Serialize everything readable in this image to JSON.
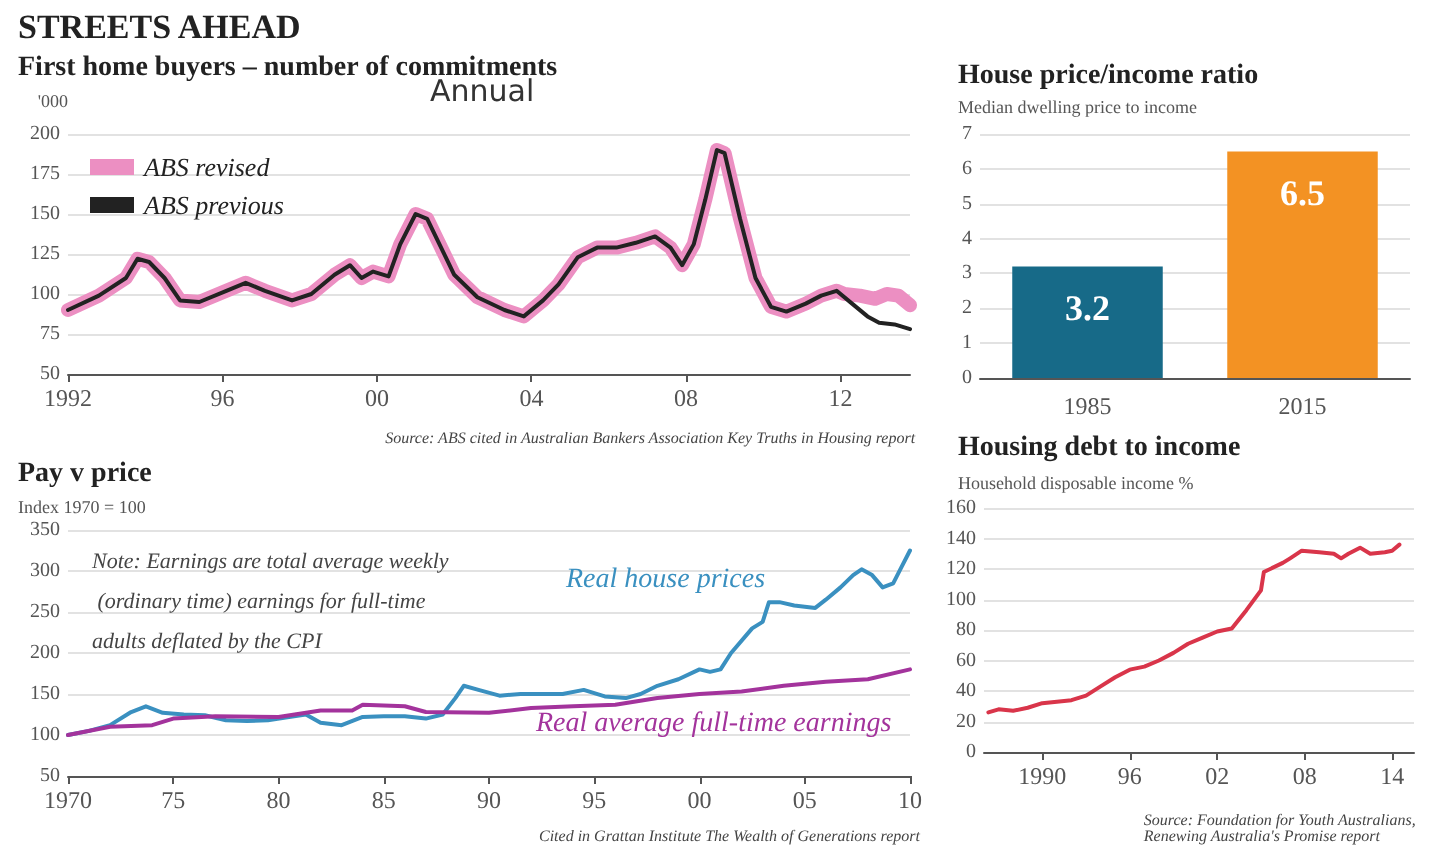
{
  "chart_data": [
    {
      "type": "line",
      "title": "STREETS AHEAD",
      "subtitle": "First home buyers – number of commitments",
      "ylabel": "'000",
      "annotations": [
        "Annual",
        "Source: ABS cited in Australian Bankers Association Key Truths in Housing report"
      ],
      "series": [
        {
          "name": "ABS revised",
          "color": "#ec8fc2",
          "x": [
            1992,
            1992.8,
            1993.5,
            1993.8,
            1994.1,
            1994.5,
            1994.9,
            1995.4,
            1996.1,
            1996.6,
            1997.1,
            1997.8,
            1998.3,
            1998.9,
            1999.3,
            1999.6,
            1999.9,
            2000.3,
            2000.6,
            2001.0,
            2001.3,
            2001.6,
            2002.0,
            2002.6,
            2003.3,
            2003.8,
            2004.3,
            2004.7,
            2005.2,
            2005.7,
            2006.2,
            2006.7,
            2007.2,
            2007.6,
            2007.9,
            2008.2,
            2008.5,
            2008.8,
            2009.0,
            2009.4,
            2009.8,
            2010.2,
            2010.6,
            2011.1,
            2011.5,
            2011.9,
            2012.1,
            2012.5,
            2012.9,
            2013.2,
            2013.5,
            2013.8
          ],
          "values": [
            90,
            99,
            110,
            122,
            120,
            110,
            96,
            95,
            102,
            107,
            102,
            96,
            100,
            112,
            118,
            110,
            114,
            111,
            131,
            150,
            147,
            132,
            112,
            98,
            90,
            86,
            96,
            106,
            123,
            129,
            129,
            132,
            136,
            129,
            118,
            131,
            159,
            190,
            188,
            147,
            110,
            92,
            89,
            94,
            99,
            102,
            100,
            99,
            97,
            100,
            99,
            93
          ]
        },
        {
          "name": "ABS previous",
          "color": "#222222",
          "x": [
            1992,
            1992.8,
            1993.5,
            1993.8,
            1994.1,
            1994.5,
            1994.9,
            1995.4,
            1996.1,
            1996.6,
            1997.1,
            1997.8,
            1998.3,
            1998.9,
            1999.3,
            1999.6,
            1999.9,
            2000.3,
            2000.6,
            2001.0,
            2001.3,
            2001.6,
            2002.0,
            2002.6,
            2003.3,
            2003.8,
            2004.3,
            2004.7,
            2005.2,
            2005.7,
            2006.2,
            2006.7,
            2007.2,
            2007.6,
            2007.9,
            2008.2,
            2008.5,
            2008.8,
            2009.0,
            2009.4,
            2009.8,
            2010.2,
            2010.6,
            2011.1,
            2011.5,
            2011.9,
            2012.3,
            2012.7,
            2013.0,
            2013.4,
            2013.8
          ],
          "values": [
            90,
            99,
            110,
            122,
            120,
            110,
            96,
            95,
            102,
            107,
            102,
            96,
            100,
            112,
            118,
            110,
            114,
            111,
            131,
            150,
            147,
            132,
            112,
            98,
            90,
            86,
            96,
            106,
            123,
            129,
            129,
            132,
            136,
            129,
            118,
            131,
            159,
            190,
            188,
            147,
            110,
            92,
            89,
            94,
            99,
            102,
            94,
            86,
            82,
            81,
            78
          ]
        }
      ],
      "xlim": [
        1992,
        2013.8
      ],
      "xticks": [
        {
          "value": 1992,
          "label": "1992"
        },
        {
          "value": 1996,
          "label": "96"
        },
        {
          "value": 2000,
          "label": "00"
        },
        {
          "value": 2004,
          "label": "04"
        },
        {
          "value": 2008,
          "label": "08"
        },
        {
          "value": 2012,
          "label": "12"
        }
      ],
      "ylim": [
        50,
        200
      ],
      "yticks": [
        50,
        75,
        100,
        125,
        150,
        175,
        200
      ],
      "grid": "y",
      "legend": "top left",
      "marker": "none",
      "line_style": "solid"
    },
    {
      "type": "bar",
      "title": "House price/income ratio",
      "subtitle": "Median dwelling price to income",
      "categories": [
        "1985",
        "2015"
      ],
      "values": [
        3.2,
        6.5
      ],
      "colors": [
        "#176a88",
        "#f39223"
      ],
      "ylim": [
        0,
        7
      ],
      "yticks": [
        0,
        1,
        2,
        3,
        4,
        5,
        6,
        7
      ],
      "grid": "y",
      "data_labels": true
    },
    {
      "type": "line",
      "title": "Pay v price",
      "subtitle": "Index 1970 = 100",
      "annotations": [
        "Note: Earnings are total average weekly (ordinary time) earnings for full-time adults deflated by the CPI",
        "Cited in Grattan Institute The Wealth of Generations report"
      ],
      "series": [
        {
          "name": "Real house prices",
          "color": "#3a90c0",
          "x": [
            1970,
            1971,
            1972,
            1973,
            1973.7,
            1974.5,
            1975.5,
            1976.5,
            1977.5,
            1978.5,
            1979.5,
            1980.5,
            1981.3,
            1982,
            1983,
            1984,
            1985,
            1986,
            1987,
            1987.8,
            1988.4,
            1988.8,
            1989.5,
            1990.5,
            1991.5,
            1992.5,
            1993.5,
            1994.5,
            1995.5,
            1996.5,
            1997.2,
            1998,
            1999,
            2000,
            2000.5,
            2001,
            2001.5,
            2002.5,
            2003,
            2003.3,
            2003.8,
            2004.5,
            2005.5,
            2006,
            2006.7,
            2007.3,
            2007.7,
            2008.2,
            2008.7,
            2009.2,
            2009.6,
            2010
          ],
          "values": [
            100,
            105,
            112,
            128,
            135,
            127,
            125,
            124,
            118,
            117,
            118,
            122,
            125,
            115,
            112,
            122,
            123,
            123,
            120,
            125,
            145,
            160,
            155,
            148,
            150,
            150,
            150,
            155,
            147,
            145,
            150,
            160,
            168,
            180,
            177,
            180,
            200,
            230,
            238,
            262,
            262,
            258,
            255,
            265,
            280,
            295,
            302,
            295,
            280,
            285,
            305,
            325
          ]
        },
        {
          "name": "Real average full-time earnings",
          "color": "#a3339c",
          "x": [
            1970,
            1972,
            1974,
            1975,
            1977,
            1980,
            1982,
            1983.5,
            1984,
            1986,
            1987,
            1990,
            1992,
            1994,
            1996,
            1998,
            2000,
            2002,
            2004,
            2006,
            2008,
            2010
          ],
          "values": [
            100,
            110,
            112,
            120,
            123,
            122,
            130,
            130,
            137,
            135,
            128,
            127,
            133,
            135,
            137,
            145,
            150,
            153,
            160,
            165,
            168,
            180
          ]
        }
      ],
      "xlim": [
        1970,
        2010
      ],
      "xticks": [
        {
          "value": 1970,
          "label": "1970"
        },
        {
          "value": 1975,
          "label": "75"
        },
        {
          "value": 1980,
          "label": "80"
        },
        {
          "value": 1985,
          "label": "85"
        },
        {
          "value": 1990,
          "label": "90"
        },
        {
          "value": 1995,
          "label": "95"
        },
        {
          "value": 2000,
          "label": "00"
        },
        {
          "value": 2005,
          "label": "05"
        },
        {
          "value": 2010,
          "label": "10"
        }
      ],
      "ylim": [
        50,
        350
      ],
      "yticks": [
        50,
        100,
        150,
        200,
        250,
        300,
        350
      ],
      "grid": "y",
      "marker": "none",
      "line_style": "solid"
    },
    {
      "type": "line",
      "title": "Housing debt to income",
      "subtitle": "Household disposable income %",
      "annotations": [
        "Source: Foundation for Youth Australians, Renewing Australia's Promise report"
      ],
      "series": [
        {
          "color": "#d9354a",
          "x": [
            1986.3,
            1987,
            1988,
            1989,
            1990,
            1991,
            1992,
            1993,
            1994,
            1995,
            1996,
            1997,
            1998,
            1999,
            2000,
            2001,
            2002,
            2003,
            2004,
            2005,
            2005.2,
            2006.5,
            2007,
            2007.8,
            2009,
            2010,
            2010.5,
            2011,
            2011.8,
            2012.5,
            2013.5,
            2014,
            2014.5
          ],
          "values": [
            26,
            28,
            27,
            29,
            32,
            33,
            34,
            37,
            43,
            49,
            54,
            56,
            60,
            65,
            71,
            75,
            79,
            81,
            93,
            106,
            118,
            124,
            127,
            132,
            131,
            130,
            127,
            130,
            134,
            130,
            131,
            132,
            136
          ]
        }
      ],
      "xlim": [
        1986,
        2015.5
      ],
      "xticks": [
        {
          "value": 1990,
          "label": "1990"
        },
        {
          "value": 1996,
          "label": "96"
        },
        {
          "value": 2002,
          "label": "02"
        },
        {
          "value": 2008,
          "label": "08"
        },
        {
          "value": 2014,
          "label": "14"
        }
      ],
      "ylim": [
        0,
        160
      ],
      "yticks": [
        0,
        20,
        40,
        60,
        80,
        100,
        120,
        140,
        160
      ],
      "grid": "y",
      "marker": "none",
      "line_style": "solid"
    }
  ]
}
